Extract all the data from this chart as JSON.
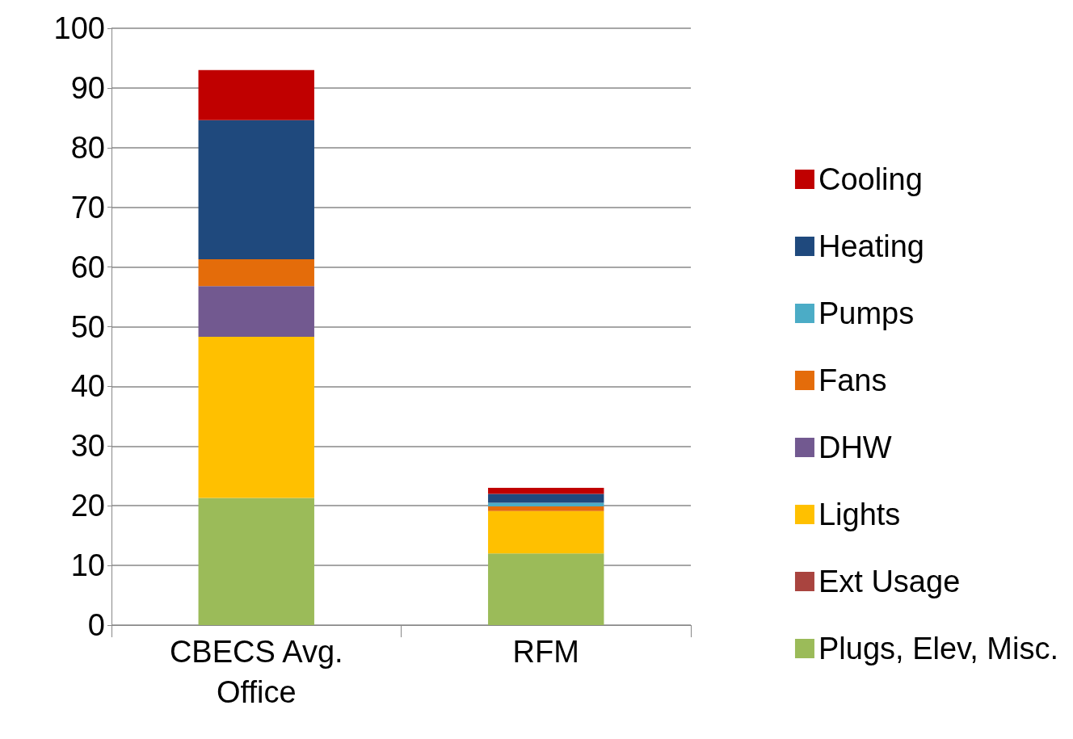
{
  "chart_data": {
    "type": "bar",
    "stacked": true,
    "categories": [
      "CBECS Avg.\nOffice",
      "RFM"
    ],
    "series": [
      {
        "name": "Plugs, Elev, Misc.",
        "color": "#9bbb59",
        "values": [
          21.3,
          12.0
        ]
      },
      {
        "name": "Ext Usage",
        "color": "#a9443f",
        "values": [
          0,
          0
        ]
      },
      {
        "name": "Lights",
        "color": "#ffc000",
        "values": [
          27.0,
          7.1
        ]
      },
      {
        "name": "DHW",
        "color": "#725990",
        "values": [
          8.5,
          0
        ]
      },
      {
        "name": "Fans",
        "color": "#e46c0a",
        "values": [
          4.5,
          0.8
        ]
      },
      {
        "name": "Pumps",
        "color": "#4bacc6",
        "values": [
          0,
          0.6
        ]
      },
      {
        "name": "Heating",
        "color": "#1f497d",
        "values": [
          23.3,
          1.5
        ]
      },
      {
        "name": "Cooling",
        "color": "#c00000",
        "values": [
          8.4,
          1.0
        ]
      }
    ],
    "ylim": [
      0,
      100
    ],
    "yticks": [
      0,
      10,
      20,
      30,
      40,
      50,
      60,
      70,
      80,
      90,
      100
    ],
    "grid": "y",
    "legend": "right"
  }
}
